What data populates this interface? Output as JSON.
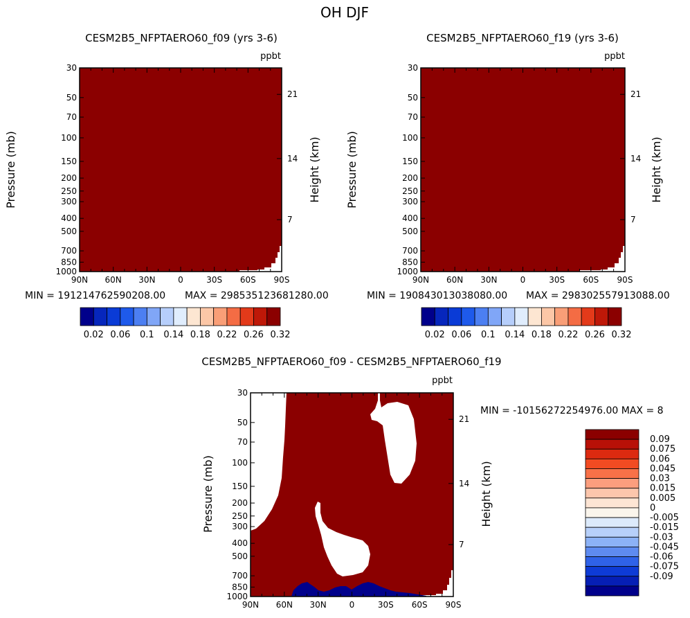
{
  "page": {
    "title": "OH DJF"
  },
  "colors": {
    "fill_dark_red": "#8B0000",
    "fill_navy": "#00008B",
    "background": "#ffffff"
  },
  "chart_data": [
    {
      "type": "heatmap",
      "id": "p1",
      "title": "CESM2B5_NFPTAERO60_f09 (yrs 3-6)",
      "units": "ppbt",
      "xlabel": "",
      "ylabel": "Pressure (mb)",
      "right_ylabel": "Height (km)",
      "x_ticks": [
        "90N",
        "60N",
        "30N",
        "0",
        "30S",
        "60S",
        "90S"
      ],
      "y_ticks": [
        "30",
        "50",
        "70",
        "100",
        "150",
        "200",
        "250",
        "300",
        "400",
        "500",
        "700",
        "850",
        "1000"
      ],
      "y_range_mb": [
        1000,
        30
      ],
      "right_ticks": [
        "21",
        "14",
        "7"
      ],
      "min_text": "MIN = 191214762590208.00",
      "max_text": "MAX = 298535123681280.00",
      "colorbar": {
        "orientation": "horizontal",
        "labels": [
          "0.02",
          "0.06",
          "0.1",
          "0.14",
          "0.18",
          "0.22",
          "0.26",
          "0.32"
        ],
        "colors": [
          "#00008B",
          "#0626BC",
          "#0A3BD6",
          "#1E5AEB",
          "#4C7FF2",
          "#80A6F7",
          "#B6CEFB",
          "#E0EDFD",
          "#FDE6D2",
          "#FCC7A7",
          "#F99E77",
          "#F46C44",
          "#E33A1A",
          "#BE1808",
          "#8B0000"
        ]
      }
    },
    {
      "type": "heatmap",
      "id": "p2",
      "title": "CESM2B5_NFPTAERO60_f19 (yrs 3-6)",
      "units": "ppbt",
      "xlabel": "",
      "ylabel": "Pressure (mb)",
      "right_ylabel": "Height (km)",
      "x_ticks": [
        "90N",
        "60N",
        "30N",
        "0",
        "30S",
        "60S",
        "90S"
      ],
      "y_ticks": [
        "30",
        "50",
        "70",
        "100",
        "150",
        "200",
        "250",
        "300",
        "400",
        "500",
        "700",
        "850",
        "1000"
      ],
      "y_range_mb": [
        1000,
        30
      ],
      "right_ticks": [
        "21",
        "14",
        "7"
      ],
      "min_text": "MIN = 190843013038080.00",
      "max_text": "MAX = 298302557913088.00",
      "colorbar": {
        "orientation": "horizontal",
        "labels": [
          "0.02",
          "0.06",
          "0.1",
          "0.14",
          "0.18",
          "0.22",
          "0.26",
          "0.32"
        ],
        "colors": [
          "#00008B",
          "#0626BC",
          "#0A3BD6",
          "#1E5AEB",
          "#4C7FF2",
          "#80A6F7",
          "#B6CEFB",
          "#E0EDFD",
          "#FDE6D2",
          "#FCC7A7",
          "#F99E77",
          "#F46C44",
          "#E33A1A",
          "#BE1808",
          "#8B0000"
        ]
      }
    },
    {
      "type": "heatmap",
      "id": "p3",
      "title": "CESM2B5_NFPTAERO60_f09 - CESM2B5_NFPTAERO60_f19",
      "units": "ppbt",
      "xlabel": "",
      "ylabel": "Pressure (mb)",
      "right_ylabel": "Height (km)",
      "x_ticks": [
        "90N",
        "60N",
        "30N",
        "0",
        "30S",
        "60S",
        "90S"
      ],
      "y_ticks": [
        "30",
        "50",
        "70",
        "100",
        "150",
        "200",
        "250",
        "300",
        "400",
        "500",
        "700",
        "850",
        "1000"
      ],
      "y_range_mb": [
        1000,
        30
      ],
      "right_ticks": [
        "21",
        "14",
        "7"
      ],
      "minmax_text": "MIN = -10156272254976.00   MAX = 8",
      "colorbar": {
        "orientation": "vertical",
        "labels": [
          "0.09",
          "0.075",
          "0.06",
          "0.045",
          "0.03",
          "0.015",
          "0.005",
          "0",
          "-0.005",
          "-0.015",
          "-0.03",
          "-0.045",
          "-0.06",
          "-0.075",
          "-0.09"
        ],
        "colors": [
          "#8B0000",
          "#B81007",
          "#DC2A10",
          "#F24B22",
          "#F87148",
          "#FB9E7E",
          "#FCC6AC",
          "#FDE5D4",
          "#FAF5EC",
          "#DCEAFB",
          "#B7D0FA",
          "#8CB2F6",
          "#5E8BF0",
          "#2F62E8",
          "#0E3BD6",
          "#061FB5",
          "#00008B"
        ]
      }
    }
  ]
}
